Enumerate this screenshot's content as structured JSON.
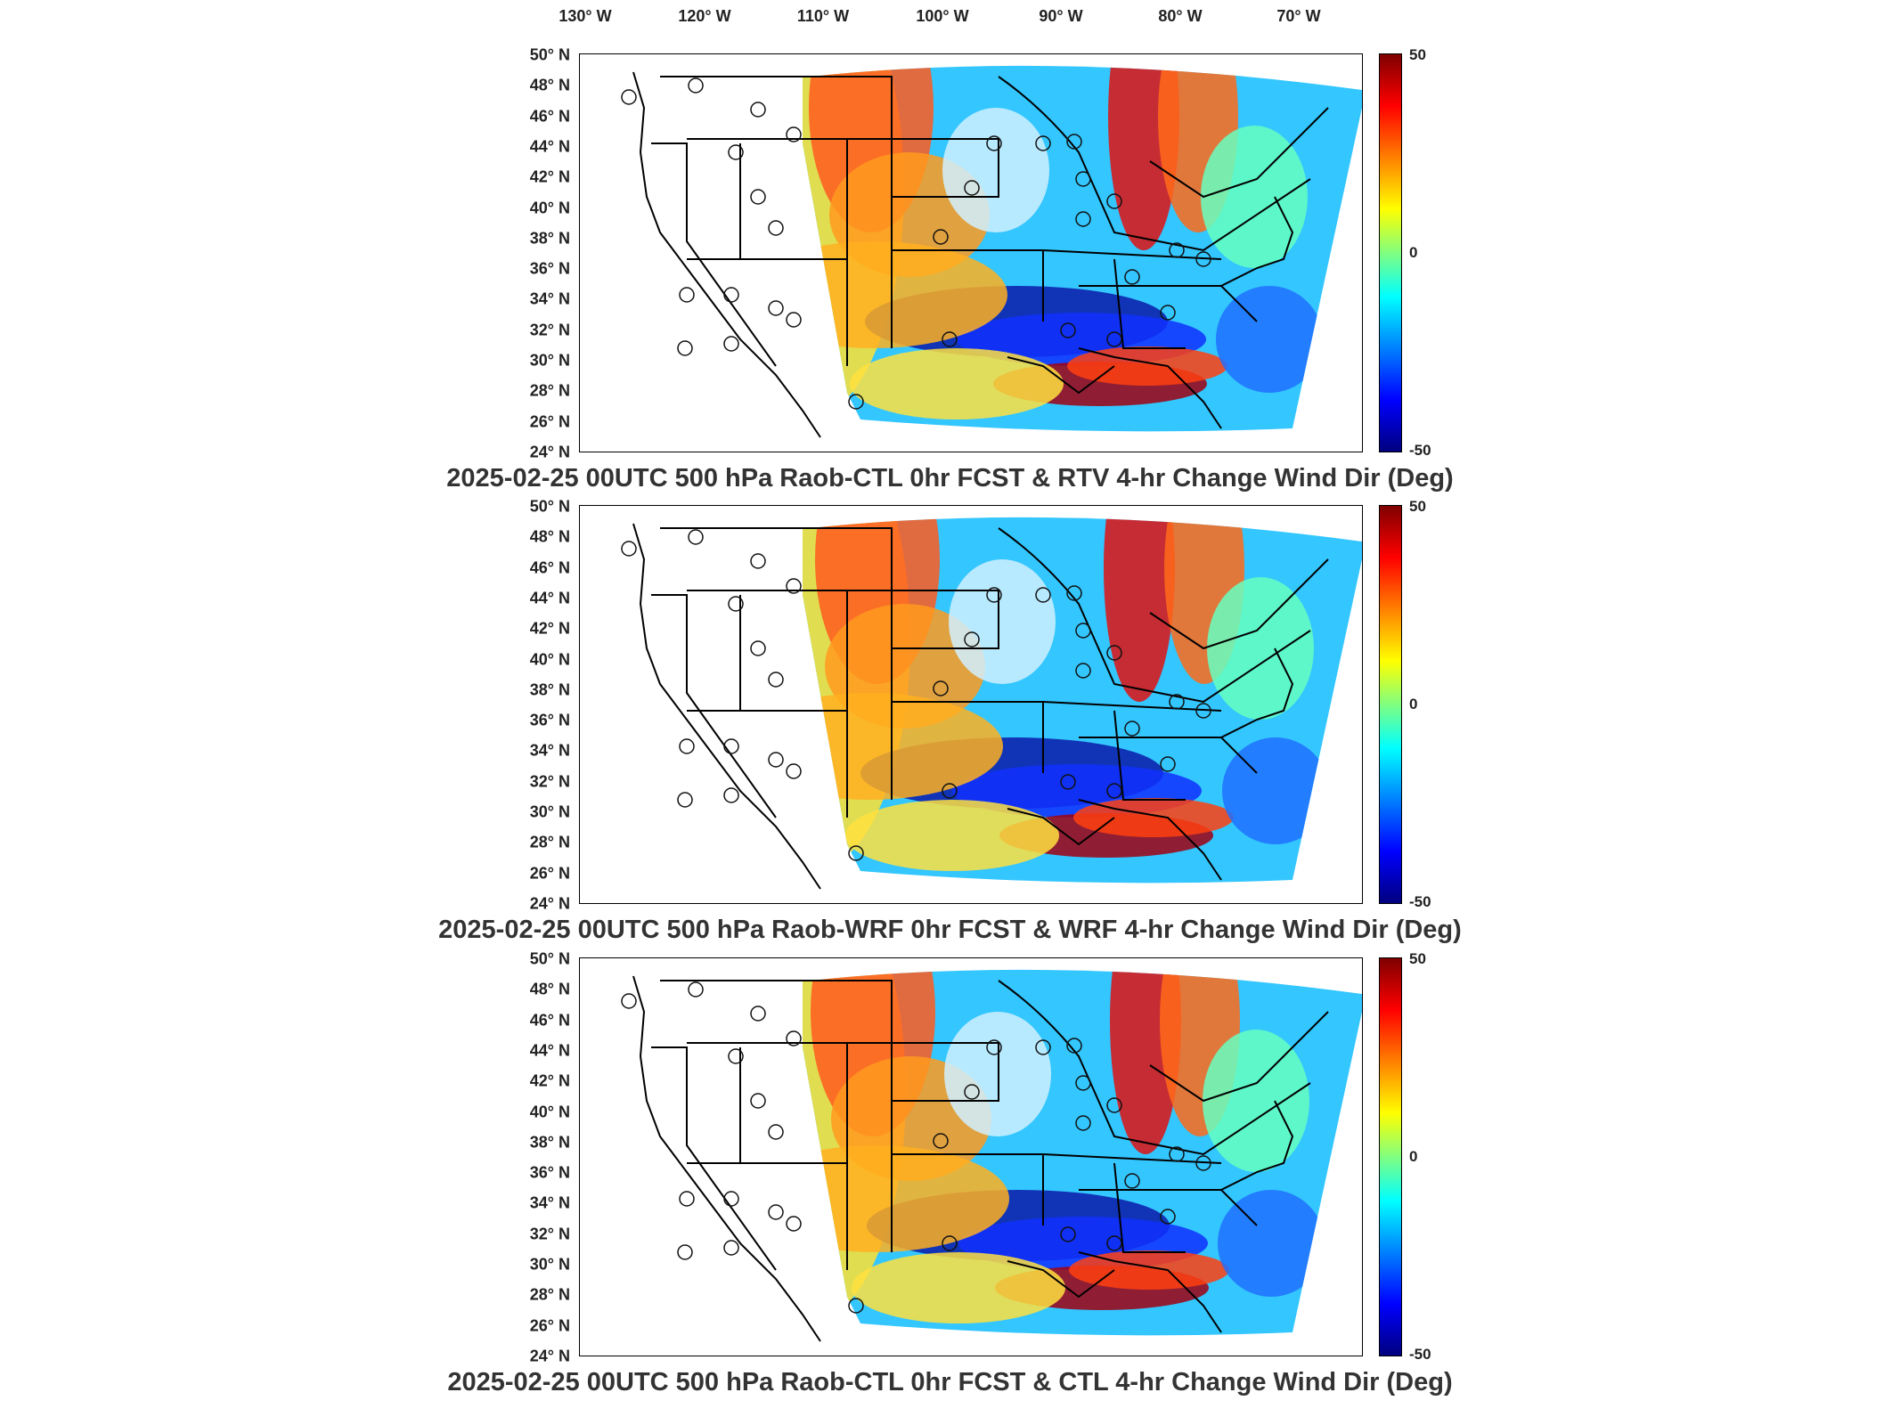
{
  "longitude_labels": [
    "130° W",
    "120° W",
    "110° W",
    "100° W",
    "90° W",
    "80° W",
    "70° W"
  ],
  "latitude_labels": [
    "50° N",
    "48° N",
    "46° N",
    "44° N",
    "42° N",
    "40° N",
    "38° N",
    "36° N",
    "34° N",
    "32° N",
    "30° N",
    "28° N",
    "26° N",
    "24° N"
  ],
  "colorbar": {
    "ticks": [
      "50",
      "0",
      "-50"
    ],
    "colors": [
      "#7f0000",
      "#ff0000",
      "#ff8000",
      "#ffff00",
      "#80ff80",
      "#00ffff",
      "#0080ff",
      "#0000ff",
      "#00007f"
    ]
  },
  "panels": [
    {
      "title": "2025-02-25 00UTC 500 hPa Raob-CTL 0hr FCST & RTV 4-hr Change Wind Dir (Deg)"
    },
    {
      "title": "2025-02-25 00UTC 500 hPa Raob-WRF 0hr FCST & WRF 4-hr Change Wind Dir (Deg)"
    },
    {
      "title": "2025-02-25 00UTC 500 hPa Raob-CTL 0hr FCST & CTL 4-hr Change Wind Dir (Deg)"
    }
  ]
}
